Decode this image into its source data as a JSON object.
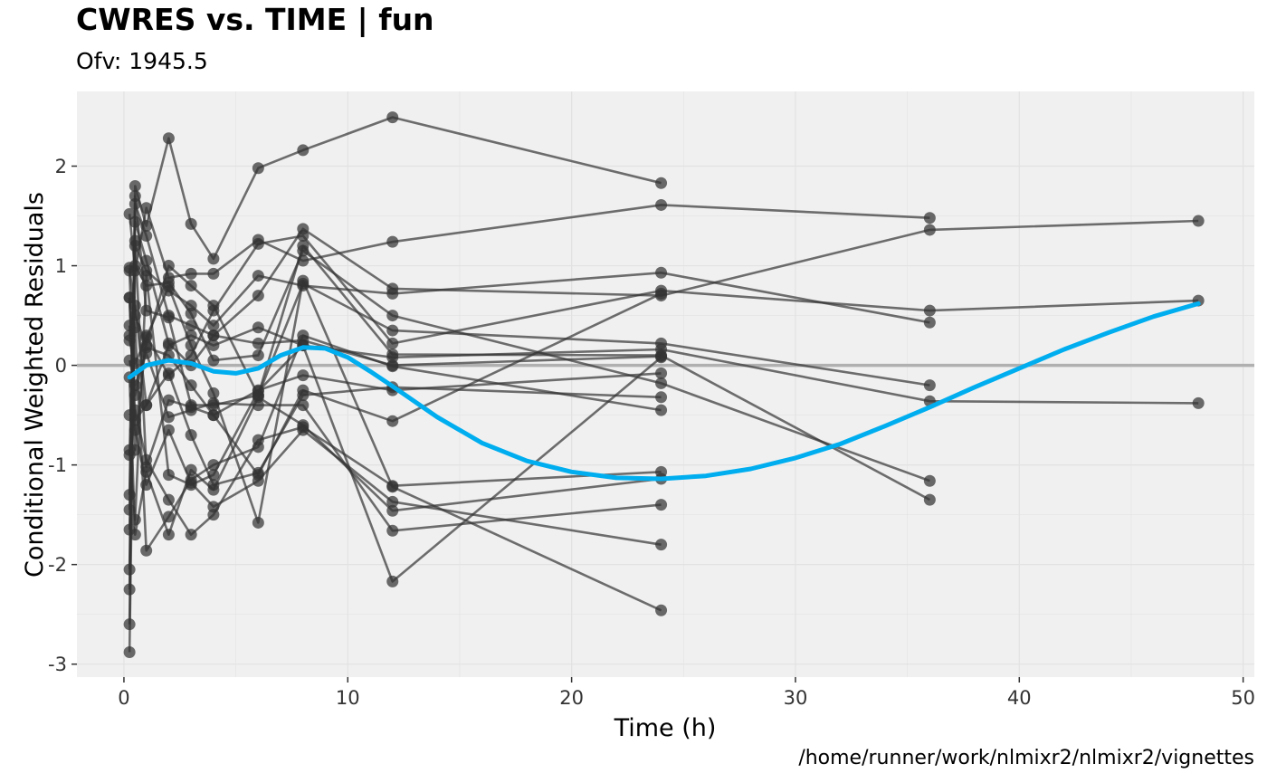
{
  "chart_data": {
    "type": "scatter",
    "title": "CWRES vs. TIME | fun",
    "subtitle": "Ofv: 1945.5",
    "caption": "/home/runner/work/nlmixr2/nlmixr2/vignettes",
    "xlabel": "Time (h)",
    "ylabel": "Conditional Weighted Residuals",
    "xlim": [
      -2.1,
      50.5
    ],
    "ylim": [
      -3.13,
      2.75
    ],
    "xticks": [
      0,
      10,
      20,
      30,
      40,
      50
    ],
    "yticks": [
      -3,
      -2,
      -1,
      0,
      1,
      2
    ],
    "grid": true,
    "legend": "none",
    "reference_line_y": 0,
    "colors": {
      "panel_background": "#f0f0f0",
      "grid": "#e2e2e2",
      "reference_line": "#b0b0b0",
      "subject_lines": "#333333",
      "points": "#333333",
      "smooth": "#00aeef"
    },
    "subjects": [
      {
        "x": [
          0.25,
          0.5,
          1,
          2,
          3,
          4,
          6,
          8,
          12,
          24
        ],
        "y": [
          -2.05,
          1.8,
          1.4,
          2.28,
          1.42,
          1.07,
          1.98,
          2.16,
          2.49,
          1.83
        ]
      },
      {
        "x": [
          0.25,
          0.5,
          1,
          2,
          3,
          4,
          6,
          8,
          12,
          24,
          36
        ],
        "y": [
          1.52,
          0.95,
          1.58,
          0.88,
          0.92,
          0.92,
          1.26,
          1.05,
          1.24,
          1.61,
          1.48
        ]
      },
      {
        "x": [
          0.25,
          0.5,
          1,
          2,
          3,
          4,
          6,
          8,
          12,
          24,
          36,
          48
        ],
        "y": [
          -1.3,
          1.62,
          1.3,
          0.5,
          0.4,
          0.3,
          0.7,
          1.37,
          0.77,
          0.7,
          1.36,
          1.45
        ]
      },
      {
        "x": [
          0.25,
          0.5,
          1,
          2,
          3,
          4,
          6,
          8,
          12,
          24,
          36,
          48
        ],
        "y": [
          0.68,
          -0.85,
          0.3,
          -0.1,
          0.1,
          0.55,
          1.22,
          1.3,
          0.22,
          0.75,
          0.55,
          0.65
        ]
      },
      {
        "x": [
          0.25,
          0.5,
          1,
          2,
          3,
          4,
          6,
          8,
          12,
          24,
          36
        ],
        "y": [
          -0.9,
          1.2,
          0.95,
          0.75,
          0.6,
          0.4,
          0.9,
          0.8,
          0.72,
          0.93,
          0.43
        ]
      },
      {
        "x": [
          0.25,
          0.5,
          1,
          2,
          3,
          4,
          6,
          8,
          12,
          24,
          36,
          48
        ],
        "y": [
          0.3,
          0.6,
          -0.4,
          0.2,
          0.3,
          0.2,
          0.38,
          0.2,
          0.08,
          0.16,
          -0.36,
          -0.38
        ]
      },
      {
        "x": [
          0.25,
          0.5,
          1,
          2,
          3,
          4,
          6,
          8,
          12,
          24,
          36
        ],
        "y": [
          -2.6,
          1.7,
          0.55,
          0.48,
          -0.4,
          -0.4,
          -0.3,
          0.82,
          0.35,
          0.22,
          -0.2
        ]
      },
      {
        "x": [
          0.25,
          0.5,
          1,
          2,
          3,
          4,
          6,
          8,
          12,
          24,
          36
        ],
        "y": [
          -2.88,
          1.0,
          0.8,
          0.83,
          0.52,
          0.05,
          0.1,
          1.15,
          0.5,
          -0.18,
          -1.16
        ]
      },
      {
        "x": [
          0.25,
          0.5,
          1,
          2,
          3,
          4,
          6,
          8,
          12,
          24,
          36
        ],
        "y": [
          0.98,
          0.5,
          0.2,
          1.0,
          0.8,
          0.6,
          -0.3,
          1.2,
          0.11,
          0.1,
          -1.35
        ]
      },
      {
        "x": [
          0.25,
          0.5,
          1,
          2,
          3,
          4,
          6,
          8,
          12,
          24
        ],
        "y": [
          -1.45,
          1.25,
          -1.02,
          -0.35,
          -0.42,
          -0.5,
          -0.25,
          -0.1,
          -0.25,
          -0.08
        ]
      },
      {
        "x": [
          0.25,
          0.5,
          1,
          2,
          3,
          4,
          6,
          8,
          12,
          24
        ],
        "y": [
          0.95,
          -0.55,
          -0.4,
          -0.08,
          -0.7,
          -1.2,
          -1.08,
          -0.3,
          -0.22,
          -0.32
        ]
      },
      {
        "x": [
          0.25,
          0.5,
          1,
          2,
          3,
          4,
          6,
          8,
          12,
          24
        ],
        "y": [
          -1.65,
          0.38,
          -1.86,
          -1.52,
          -1.15,
          -1.0,
          -0.82,
          0.3,
          -0.01,
          -0.45
        ]
      },
      {
        "x": [
          0.25,
          0.5,
          1,
          2,
          3,
          4,
          6,
          8,
          12,
          24
        ],
        "y": [
          -0.5,
          -0.45,
          -0.95,
          -1.35,
          -1.7,
          -1.5,
          -0.75,
          -0.62,
          -1.21,
          -1.07
        ]
      },
      {
        "x": [
          0.25,
          0.5,
          1,
          2,
          3,
          4,
          6,
          8,
          12,
          24
        ],
        "y": [
          -0.12,
          -1.7,
          -1.07,
          -1.7,
          -1.05,
          -1.25,
          -0.32,
          -0.6,
          -1.46,
          -1.14
        ]
      },
      {
        "x": [
          0.25,
          0.5,
          1,
          2,
          3,
          4,
          6,
          8,
          12,
          24
        ],
        "y": [
          0.68,
          -0.65,
          -1.2,
          -0.65,
          -1.18,
          -1.42,
          -1.16,
          -0.65,
          -1.37,
          -1.8
        ]
      },
      {
        "x": [
          0.25,
          0.5,
          1,
          2,
          3,
          4,
          6,
          8,
          12,
          24
        ],
        "y": [
          0.25,
          0.02,
          0.28,
          0.79,
          0.2,
          -0.28,
          -1.58,
          0.85,
          -1.22,
          -2.46
        ]
      },
      {
        "x": [
          0.25,
          0.5,
          1,
          2,
          3,
          4,
          6,
          8,
          12,
          24
        ],
        "y": [
          0.05,
          -0.2,
          0.12,
          -0.52,
          -0.45,
          -0.38,
          -0.4,
          -0.4,
          -1.66,
          -1.4
        ]
      },
      {
        "x": [
          0.25,
          0.5,
          1,
          2,
          3,
          4,
          6,
          8,
          12,
          24
        ],
        "y": [
          0.4,
          -0.3,
          0.18,
          0.1,
          -0.2,
          -0.5,
          -1.1,
          -0.25,
          -0.56,
          0.72
        ]
      },
      {
        "x": [
          0.25,
          0.5,
          1,
          2,
          3,
          4,
          6,
          8,
          12,
          24
        ],
        "y": [
          -2.25,
          1.44,
          1.05,
          0.22,
          0.0,
          0.3,
          0.22,
          0.25,
          0.0,
          0.09
        ]
      },
      {
        "x": [
          0.25,
          0.5,
          1,
          2,
          3,
          4,
          6,
          8,
          12,
          24
        ],
        "y": [
          -0.85,
          -1.55,
          0.9,
          -1.1,
          -1.2,
          -1.1,
          -0.26,
          0.2,
          -2.17,
          0.08
        ]
      }
    ],
    "smooth": {
      "name": "",
      "x": [
        0.25,
        1,
        2,
        3,
        4,
        5,
        6,
        7,
        8,
        9,
        10,
        11,
        12,
        14,
        16,
        18,
        20,
        22,
        24,
        26,
        28,
        30,
        32,
        34,
        36,
        38,
        40,
        42,
        44,
        46,
        48
      ],
      "y": [
        -0.12,
        0.0,
        0.05,
        0.02,
        -0.06,
        -0.08,
        -0.03,
        0.1,
        0.18,
        0.17,
        0.08,
        -0.06,
        -0.21,
        -0.52,
        -0.78,
        -0.96,
        -1.07,
        -1.13,
        -1.14,
        -1.11,
        -1.04,
        -0.93,
        -0.79,
        -0.61,
        -0.42,
        -0.22,
        -0.03,
        0.16,
        0.33,
        0.49,
        0.62
      ]
    }
  }
}
